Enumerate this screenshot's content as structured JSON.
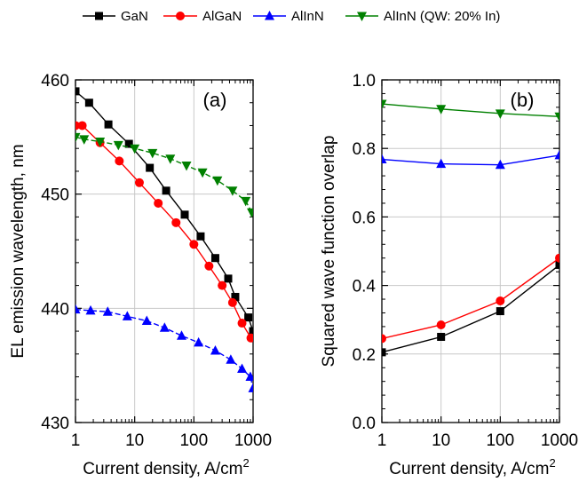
{
  "legend": [
    {
      "key": "gan",
      "label": "GaN",
      "color": "#000000",
      "marker": "square"
    },
    {
      "key": "algan",
      "label": "AlGaN",
      "color": "#ff0000",
      "marker": "circle"
    },
    {
      "key": "alinn",
      "label": "AlInN",
      "color": "#0000ff",
      "marker": "triangle-up"
    },
    {
      "key": "alinn_qw",
      "label": "AlInN (QW: 20% In)",
      "color": "#008000",
      "marker": "triangle-down"
    }
  ],
  "chart_data": [
    {
      "type": "line",
      "panel_tag": "(a)",
      "xlabel": "Current density, A/cm",
      "xlabel_superscript": "2",
      "ylabel": "EL emission wavelength, nm",
      "x_scale": "log",
      "xlim": [
        1,
        1000
      ],
      "ylim": [
        430,
        460
      ],
      "x_ticks": [
        1,
        10,
        100,
        1000
      ],
      "x_tick_labels": [
        "1",
        "10",
        "100",
        "1000"
      ],
      "y_ticks": [
        430,
        440,
        450,
        460
      ],
      "y_tick_labels": [
        "430",
        "440",
        "450",
        "460"
      ],
      "grid": true,
      "series": [
        {
          "name": "GaN",
          "key": "gan",
          "line": "solid",
          "x": [
            1,
            1.7,
            3.6,
            8,
            18,
            34,
            70,
            130,
            230,
            380,
            500,
            830,
            1000
          ],
          "y": [
            459,
            458,
            456.1,
            454.4,
            452.3,
            450.3,
            448.2,
            446.3,
            444.4,
            442.6,
            441,
            439.2,
            438
          ]
        },
        {
          "name": "AlGaN",
          "key": "algan",
          "line": "solid",
          "x": [
            1,
            1.3,
            2.6,
            5.5,
            12,
            25,
            50,
            100,
            180,
            300,
            450,
            650,
            920
          ],
          "y": [
            456,
            456,
            454.5,
            452.9,
            451,
            449.2,
            447.5,
            445.6,
            443.7,
            442,
            440.5,
            438.7,
            437.4
          ]
        },
        {
          "name": "AlInN",
          "key": "alinn",
          "line": "dashed",
          "x": [
            1,
            1.8,
            3.5,
            7.5,
            16,
            32,
            62,
            120,
            230,
            420,
            650,
            900,
            1000
          ],
          "y": [
            439.9,
            439.8,
            439.7,
            439.3,
            438.9,
            438.3,
            437.6,
            437,
            436.3,
            435.5,
            434.7,
            434,
            433
          ]
        },
        {
          "name": "AlInN (QW: 20% In)",
          "key": "alinn_qw",
          "line": "dashed",
          "x": [
            1,
            1.4,
            2.6,
            5.3,
            10,
            20,
            40,
            75,
            140,
            250,
            450,
            750,
            950
          ],
          "y": [
            455,
            454.8,
            454.6,
            454.3,
            454,
            453.6,
            453.1,
            452.5,
            451.9,
            451.2,
            450.3,
            449.4,
            448.4
          ]
        }
      ]
    },
    {
      "type": "line",
      "panel_tag": "(b)",
      "xlabel": "Current density, A/cm",
      "xlabel_superscript": "2",
      "ylabel": "Squared wave function overlap",
      "x_scale": "log",
      "xlim": [
        1,
        1000
      ],
      "ylim": [
        0.0,
        1.0
      ],
      "x_ticks": [
        1,
        10,
        100,
        1000
      ],
      "x_tick_labels": [
        "1",
        "10",
        "100",
        "1000"
      ],
      "y_ticks": [
        0.0,
        0.2,
        0.4,
        0.6,
        0.8,
        1.0
      ],
      "y_tick_labels": [
        "0.0",
        "0.2",
        "0.4",
        "0.6",
        "0.8",
        "1.0"
      ],
      "grid": true,
      "series": [
        {
          "name": "GaN",
          "key": "gan",
          "line": "solid",
          "x": [
            1,
            10,
            100,
            1000
          ],
          "y": [
            0.205,
            0.25,
            0.325,
            0.46
          ]
        },
        {
          "name": "AlGaN",
          "key": "algan",
          "line": "solid",
          "x": [
            1,
            10,
            100,
            1000
          ],
          "y": [
            0.245,
            0.285,
            0.355,
            0.48
          ]
        },
        {
          "name": "AlInN",
          "key": "alinn",
          "line": "solid",
          "x": [
            1,
            10,
            100,
            1000
          ],
          "y": [
            0.768,
            0.755,
            0.752,
            0.78
          ]
        },
        {
          "name": "AlInN (QW: 20% In)",
          "key": "alinn_qw",
          "line": "solid",
          "x": [
            1,
            10,
            100,
            1000
          ],
          "y": [
            0.93,
            0.915,
            0.902,
            0.893
          ]
        }
      ]
    }
  ]
}
